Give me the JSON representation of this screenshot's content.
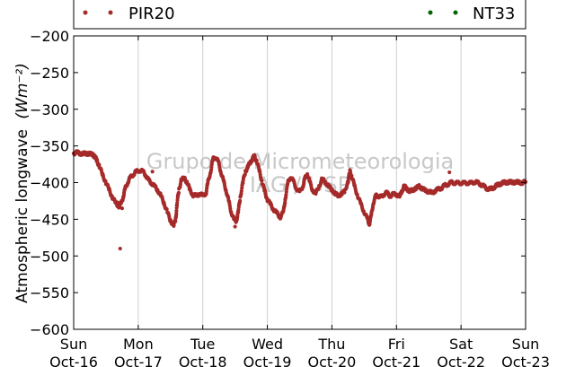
{
  "chart_data": {
    "type": "scatter",
    "ylabel": "Atmospheric longwave",
    "ylabel_units": "(Wm⁻²)",
    "ylim": [
      -600,
      -200
    ],
    "yticks": [
      -200,
      -250,
      -300,
      -350,
      -400,
      -450,
      -500,
      -550,
      -600
    ],
    "xlim": [
      "2016-10-16",
      "2016-10-23"
    ],
    "xtick_labels": [
      {
        "date": "2016-10-16",
        "day": "Sun",
        "label": "Oct-16"
      },
      {
        "date": "2016-10-17",
        "day": "Mon",
        "label": "Oct-17"
      },
      {
        "date": "2016-10-18",
        "day": "Tue",
        "label": "Oct-18"
      },
      {
        "date": "2016-10-19",
        "day": "Wed",
        "label": "Oct-19"
      },
      {
        "date": "2016-10-20",
        "day": "Thu",
        "label": "Oct-20"
      },
      {
        "date": "2016-10-21",
        "day": "Fri",
        "label": "Oct-21"
      },
      {
        "date": "2016-10-22",
        "day": "Sat",
        "label": "Oct-22"
      },
      {
        "date": "2016-10-23",
        "day": "Sun",
        "label": "Oct-23"
      }
    ],
    "grid": "vertical",
    "legend_items": [
      {
        "name": "PIR20",
        "color": "#a52a2a",
        "position": "left"
      },
      {
        "name": "NT33",
        "color": "#006400",
        "position": "right"
      }
    ],
    "watermark": [
      "Grupo de Micrometeorologia",
      "IAG / USP"
    ],
    "series": [
      {
        "name": "PIR20",
        "color": "#a52a2a",
        "x_unit": "days since 2016-10-16 00:00",
        "points": [
          [
            0.0,
            -360
          ],
          [
            0.05,
            -359
          ],
          [
            0.1,
            -360
          ],
          [
            0.15,
            -361
          ],
          [
            0.2,
            -360
          ],
          [
            0.25,
            -361
          ],
          [
            0.3,
            -362
          ],
          [
            0.33,
            -365
          ],
          [
            0.36,
            -370
          ],
          [
            0.4,
            -378
          ],
          [
            0.45,
            -390
          ],
          [
            0.5,
            -400
          ],
          [
            0.55,
            -410
          ],
          [
            0.6,
            -420
          ],
          [
            0.65,
            -428
          ],
          [
            0.7,
            -432
          ],
          [
            0.74,
            -428
          ],
          [
            0.77,
            -418
          ],
          [
            0.8,
            -408
          ],
          [
            0.84,
            -399
          ],
          [
            0.88,
            -393
          ],
          [
            0.93,
            -388
          ],
          [
            0.97,
            -385
          ],
          [
            1.02,
            -383
          ],
          [
            1.07,
            -385
          ],
          [
            1.12,
            -390
          ],
          [
            1.16,
            -397
          ],
          [
            1.2,
            -400
          ],
          [
            1.25,
            -405
          ],
          [
            1.3,
            -410
          ],
          [
            1.35,
            -418
          ],
          [
            1.4,
            -428
          ],
          [
            1.45,
            -440
          ],
          [
            1.5,
            -452
          ],
          [
            1.55,
            -458
          ],
          [
            1.58,
            -450
          ],
          [
            1.6,
            -430
          ],
          [
            1.63,
            -410
          ],
          [
            1.67,
            -395
          ],
          [
            1.72,
            -395
          ],
          [
            1.76,
            -400
          ],
          [
            1.8,
            -410
          ],
          [
            1.85,
            -417
          ],
          [
            1.9,
            -418
          ],
          [
            1.95,
            -415
          ],
          [
            2.0,
            -418
          ],
          [
            2.05,
            -414
          ],
          [
            2.08,
            -400
          ],
          [
            2.12,
            -385
          ],
          [
            2.16,
            -368
          ],
          [
            2.2,
            -365
          ],
          [
            2.24,
            -372
          ],
          [
            2.28,
            -385
          ],
          [
            2.32,
            -398
          ],
          [
            2.36,
            -410
          ],
          [
            2.4,
            -425
          ],
          [
            2.44,
            -440
          ],
          [
            2.48,
            -450
          ],
          [
            2.52,
            -452
          ],
          [
            2.55,
            -440
          ],
          [
            2.58,
            -420
          ],
          [
            2.62,
            -400
          ],
          [
            2.66,
            -385
          ],
          [
            2.7,
            -378
          ],
          [
            2.74,
            -372
          ],
          [
            2.78,
            -366
          ],
          [
            2.8,
            -364
          ],
          [
            2.84,
            -372
          ],
          [
            2.88,
            -385
          ],
          [
            2.92,
            -400
          ],
          [
            2.96,
            -412
          ],
          [
            3.0,
            -423
          ],
          [
            3.05,
            -430
          ],
          [
            3.1,
            -437
          ],
          [
            3.15,
            -442
          ],
          [
            3.2,
            -447
          ],
          [
            3.25,
            -440
          ],
          [
            3.28,
            -420
          ],
          [
            3.32,
            -400
          ],
          [
            3.36,
            -392
          ],
          [
            3.4,
            -398
          ],
          [
            3.45,
            -408
          ],
          [
            3.5,
            -413
          ],
          [
            3.55,
            -405
          ],
          [
            3.58,
            -395
          ],
          [
            3.62,
            -388
          ],
          [
            3.65,
            -398
          ],
          [
            3.7,
            -410
          ],
          [
            3.75,
            -415
          ],
          [
            3.8,
            -405
          ],
          [
            3.85,
            -395
          ],
          [
            3.9,
            -400
          ],
          [
            3.95,
            -405
          ],
          [
            4.0,
            -410
          ],
          [
            4.05,
            -415
          ],
          [
            4.1,
            -418
          ],
          [
            4.15,
            -415
          ],
          [
            4.2,
            -412
          ],
          [
            4.25,
            -398
          ],
          [
            4.28,
            -385
          ],
          [
            4.31,
            -392
          ],
          [
            4.35,
            -405
          ],
          [
            4.4,
            -418
          ],
          [
            4.45,
            -430
          ],
          [
            4.5,
            -440
          ],
          [
            4.55,
            -450
          ],
          [
            4.58,
            -456
          ],
          [
            4.61,
            -445
          ],
          [
            4.64,
            -428
          ],
          [
            4.68,
            -418
          ],
          [
            4.72,
            -418
          ],
          [
            4.76,
            -420
          ],
          [
            4.8,
            -416
          ],
          [
            4.85,
            -414
          ],
          [
            4.9,
            -418
          ],
          [
            4.95,
            -416
          ],
          [
            5.0,
            -416
          ],
          [
            5.05,
            -419
          ],
          [
            5.08,
            -412
          ],
          [
            5.12,
            -405
          ],
          [
            5.16,
            -408
          ],
          [
            5.2,
            -412
          ],
          [
            5.25,
            -410
          ],
          [
            5.3,
            -408
          ],
          [
            5.35,
            -405
          ],
          [
            5.4,
            -408
          ],
          [
            5.45,
            -411
          ],
          [
            5.5,
            -412
          ],
          [
            5.55,
            -414
          ],
          [
            5.6,
            -411
          ],
          [
            5.65,
            -409
          ],
          [
            5.7,
            -407
          ],
          [
            5.75,
            -404
          ],
          [
            5.8,
            -402
          ],
          [
            5.85,
            -400
          ],
          [
            5.9,
            -400
          ],
          [
            5.95,
            -401
          ],
          [
            6.0,
            -400
          ],
          [
            6.05,
            -401
          ],
          [
            6.1,
            -400
          ],
          [
            6.15,
            -401
          ],
          [
            6.2,
            -399
          ],
          [
            6.25,
            -400
          ],
          [
            6.3,
            -402
          ],
          [
            6.35,
            -405
          ],
          [
            6.4,
            -408
          ],
          [
            6.45,
            -409
          ],
          [
            6.5,
            -407
          ],
          [
            6.55,
            -404
          ],
          [
            6.6,
            -402
          ],
          [
            6.65,
            -400
          ],
          [
            6.7,
            -400
          ],
          [
            6.75,
            -399
          ],
          [
            6.8,
            -400
          ],
          [
            6.85,
            -399
          ],
          [
            6.9,
            -400
          ],
          [
            6.95,
            -400
          ],
          [
            7.0,
            -399
          ]
        ],
        "outliers": [
          [
            0.72,
            -490
          ],
          [
            0.75,
            -435
          ],
          [
            1.22,
            -385
          ],
          [
            2.5,
            -460
          ],
          [
            5.82,
            -386
          ],
          [
            0.68,
            -427
          ]
        ]
      },
      {
        "name": "NT33",
        "color": "#006400",
        "points": []
      }
    ]
  }
}
